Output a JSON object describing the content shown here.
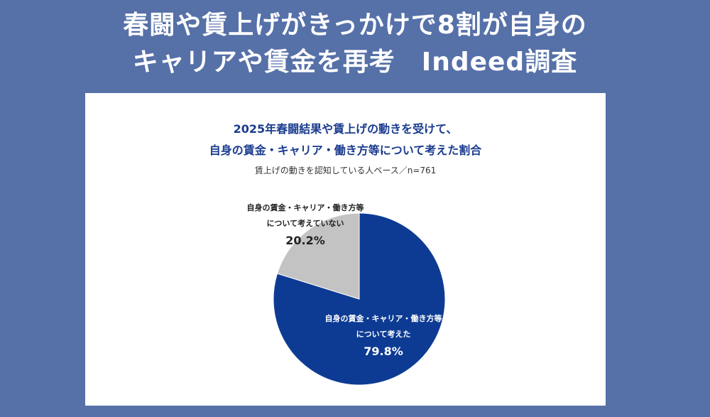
{
  "headline": {
    "line1": "春闘や賃上げがきっかけで8割が自身の",
    "line2": "キャリアや賃金を再考　Indeed調査"
  },
  "chart_data": {
    "type": "pie",
    "title_line1": "2025年春闘結果や賃上げの動きを受けて、",
    "title_line2": "自身の賃金・キャリア・働き方等について考えた割合",
    "subtitle": "賃上げの動きを認知している人ベース／n=761",
    "slices": [
      {
        "label_line1": "自身の賃金・キャリア・働き方等",
        "label_line2": "について考えた",
        "value": 79.8,
        "pct_label": "79.8%",
        "color": "#0d3b94"
      },
      {
        "label_line1": "自身の賃金・キャリア・働き方等",
        "label_line2": "について考えていない",
        "value": 20.2,
        "pct_label": "20.2%",
        "color": "#c3c3c3"
      }
    ]
  }
}
